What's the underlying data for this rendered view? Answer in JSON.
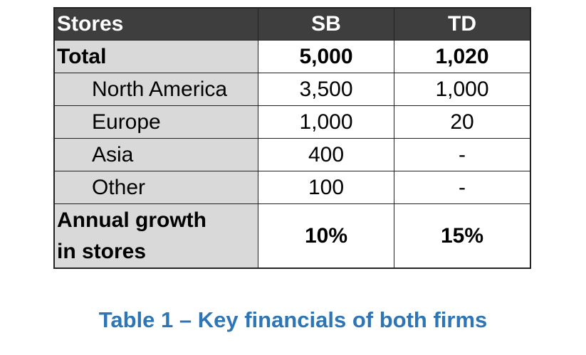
{
  "table": {
    "headers": [
      "Stores",
      "SB",
      "TD"
    ],
    "rows": [
      {
        "label": "Total",
        "sb": "5,000",
        "td": "1,020"
      },
      {
        "label": "North America",
        "sb": "3,500",
        "td": "1,000"
      },
      {
        "label": "Europe",
        "sb": "1,000",
        "td": "20"
      },
      {
        "label": "Asia",
        "sb": "400",
        "td": "-"
      },
      {
        "label": "Other",
        "sb": "100",
        "td": "-"
      },
      {
        "label_line1": "Annual growth",
        "label_line2": "in stores",
        "sb": "10%",
        "td": "15%"
      }
    ]
  },
  "caption": "Table 1 – Key financials of both firms",
  "colors": {
    "header_bg": "#3e3e3e",
    "label_bg": "#d9d9d9",
    "caption": "#2e75b6"
  }
}
